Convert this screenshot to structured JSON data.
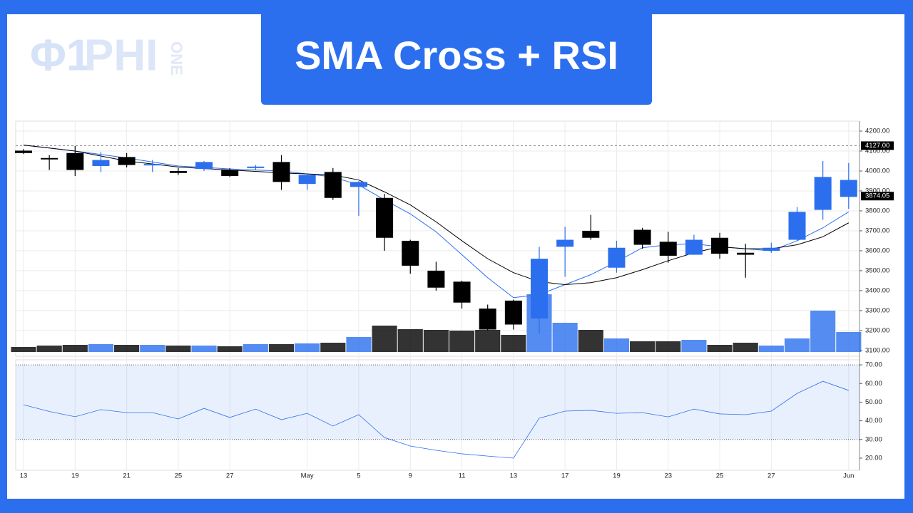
{
  "logo": {
    "symbol": "Φ1",
    "name": "PHI",
    "sub": "ONE"
  },
  "chart_data": {
    "type": "candlestick",
    "title": "SMA Cross + RSI",
    "categories": [
      "13",
      null,
      "19",
      null,
      "21",
      null,
      "25",
      null,
      "27",
      null,
      null,
      "May",
      null,
      "5",
      null,
      "9",
      null,
      "11",
      null,
      "13",
      null,
      "17",
      null,
      "19",
      null,
      "23",
      null,
      "25",
      null,
      "27",
      null,
      null,
      "Jun"
    ],
    "open": [
      4102,
      4065,
      4090,
      4025,
      4070,
      4030,
      4000,
      4010,
      4005,
      4015,
      4045,
      3935,
      3995,
      3920,
      3865,
      3650,
      3500,
      3445,
      3310,
      3350,
      3260,
      3620,
      3700,
      3515,
      3705,
      3645,
      3580,
      3665,
      3590,
      3600,
      3655,
      3805,
      3870
    ],
    "high": [
      4110,
      4080,
      4125,
      4095,
      4090,
      4055,
      4015,
      4050,
      4015,
      4030,
      4080,
      3985,
      4015,
      3950,
      3885,
      3655,
      3545,
      3450,
      3330,
      3355,
      3620,
      3720,
      3780,
      3650,
      3715,
      3695,
      3680,
      3690,
      3635,
      3640,
      3820,
      4050,
      4040
    ],
    "low": [
      4085,
      4005,
      3975,
      3995,
      4018,
      3995,
      3980,
      4000,
      3970,
      4005,
      3905,
      3905,
      3855,
      3775,
      3600,
      3485,
      3400,
      3310,
      3200,
      3205,
      3185,
      3470,
      3655,
      3490,
      3610,
      3540,
      3580,
      3560,
      3465,
      3590,
      3650,
      3755,
      3810
    ],
    "close": [
      4090,
      4058,
      4005,
      4055,
      4030,
      4035,
      3990,
      4045,
      3975,
      4022,
      3945,
      3980,
      3865,
      3945,
      3665,
      3525,
      3415,
      3340,
      3205,
      3230,
      3560,
      3655,
      3665,
      3615,
      3630,
      3575,
      3655,
      3585,
      3580,
      3615,
      3795,
      3970,
      3955
    ],
    "up_color": "#2b6fef",
    "down_color": "#000000",
    "ylim": [
      3071,
      4250
    ],
    "yticks": [
      {
        "value": 4200,
        "label": "4200.00"
      },
      {
        "value": 4100,
        "label": "4100.00"
      },
      {
        "value": 4000,
        "label": "4000.00"
      },
      {
        "value": 3900,
        "label": "3900.00"
      },
      {
        "value": 3800,
        "label": "3800.00"
      },
      {
        "value": 3700,
        "label": "3700.00"
      },
      {
        "value": 3600,
        "label": "3600.00"
      },
      {
        "value": 3500,
        "label": "3500.00"
      },
      {
        "value": 3400,
        "label": "3400.00"
      },
      {
        "value": 3300,
        "label": "3300.00"
      },
      {
        "value": 3200,
        "label": "3200.00"
      },
      {
        "value": 3100,
        "label": "3100.00"
      }
    ],
    "price_line": {
      "value": 4127,
      "label": "4127.00"
    },
    "last_price": 3874.05,
    "volume": {
      "ylim": [
        0,
        324
      ],
      "values": [
        7,
        9,
        10,
        11,
        10,
        10,
        9,
        9,
        8,
        11,
        11,
        12,
        13,
        21,
        37,
        32,
        31,
        30,
        31,
        24,
        81,
        41,
        31,
        19,
        15,
        15,
        17,
        10,
        13,
        9,
        19,
        58,
        28
      ]
    },
    "sma": [
      {
        "color": "#2b6fef",
        "values": [
          4130,
          4115,
          4100,
          4083,
          4065,
          4045,
          4025,
          4018,
          4010,
          4005,
          4000,
          3985,
          3970,
          3930,
          3855,
          3785,
          3695,
          3580,
          3465,
          3365,
          3380,
          3430,
          3480,
          3545,
          3615,
          3630,
          3635,
          3620,
          3610,
          3600,
          3650,
          3715,
          3795
        ]
      },
      {
        "color": "#000000",
        "values": [
          4130,
          4115,
          4100,
          4075,
          4050,
          4035,
          4020,
          4012,
          4005,
          3998,
          3990,
          3985,
          3980,
          3955,
          3895,
          3830,
          3745,
          3650,
          3560,
          3490,
          3445,
          3430,
          3440,
          3465,
          3505,
          3550,
          3590,
          3620,
          3610,
          3610,
          3630,
          3670,
          3740
        ]
      }
    ],
    "rsi": {
      "color": "#2b6fef",
      "ylim": [
        13.5,
        72.7
      ],
      "band": [
        30,
        70
      ],
      "yticks": [
        {
          "value": 70,
          "label": "70.00"
        },
        {
          "value": 60,
          "label": "60.00"
        },
        {
          "value": 50,
          "label": "50.00"
        },
        {
          "value": 40,
          "label": "40.00"
        },
        {
          "value": 30,
          "label": "30.00"
        },
        {
          "value": 20,
          "label": "20.00"
        }
      ],
      "values": [
        48.6,
        45,
        42.2,
        46,
        44.4,
        44.4,
        41,
        46.7,
        41.8,
        46.3,
        40.6,
        44,
        37.2,
        43.3,
        31,
        26.5,
        24.2,
        22.3,
        21.1,
        20,
        41.4,
        45.2,
        45.6,
        44,
        44.4,
        42.1,
        46.3,
        43.7,
        43.3,
        45.2,
        54.7,
        61.2,
        56.3
      ]
    }
  }
}
